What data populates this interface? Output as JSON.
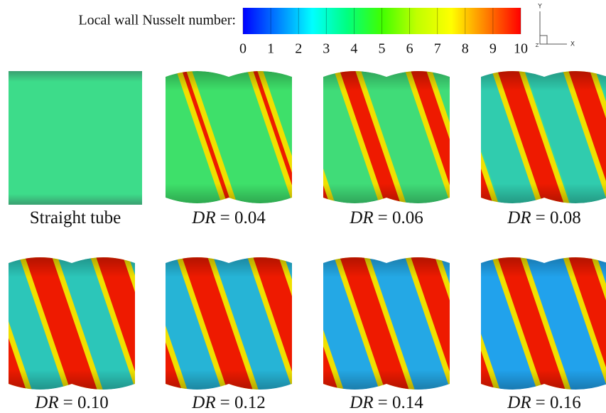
{
  "colorbar": {
    "label": "Local wall Nusselt number:",
    "range": [
      0,
      10
    ],
    "ticks": [
      0,
      1,
      2,
      3,
      4,
      5,
      6,
      7,
      8,
      9,
      10
    ],
    "colors": [
      "#0000ff",
      "#0080ff",
      "#00ffff",
      "#00ff80",
      "#40ff00",
      "#c0ff00",
      "#ffff00",
      "#ff8000",
      "#ff0000"
    ]
  },
  "axes_triad": {
    "y": "Y",
    "x": "X",
    "z": "Z"
  },
  "panels": [
    {
      "label": "Straight tube"
    },
    {
      "symbol": "DR",
      "rest": "= 0.04"
    },
    {
      "symbol": "DR",
      "rest": "= 0.06"
    },
    {
      "symbol": "DR",
      "rest": "= 0.08"
    },
    {
      "symbol": "DR",
      "rest": "= 0.10"
    },
    {
      "symbol": "DR",
      "rest": "= 0.12"
    },
    {
      "symbol": "DR",
      "rest": "= 0.14"
    },
    {
      "symbol": "DR",
      "rest": "= 0.16"
    }
  ]
}
